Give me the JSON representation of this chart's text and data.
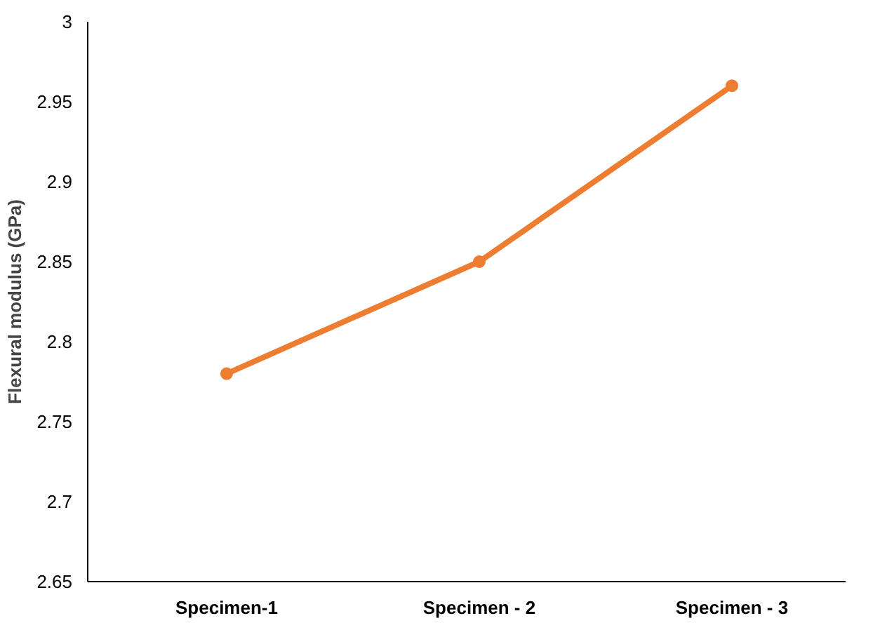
{
  "chart_data": {
    "type": "line",
    "ylabel": "Flexural modulus (GPa)",
    "categories": [
      "Specimen-1",
      "Specimen - 2",
      "Specimen - 3"
    ],
    "series": [
      {
        "color": "#ed7d31",
        "values": [
          2.78,
          2.85,
          2.96
        ]
      }
    ],
    "ylim": [
      2.65,
      3
    ],
    "yticks": [
      2.65,
      2.7,
      2.75,
      2.8,
      2.85,
      2.9,
      2.95,
      3
    ],
    "grid": false,
    "marker": "circle"
  }
}
